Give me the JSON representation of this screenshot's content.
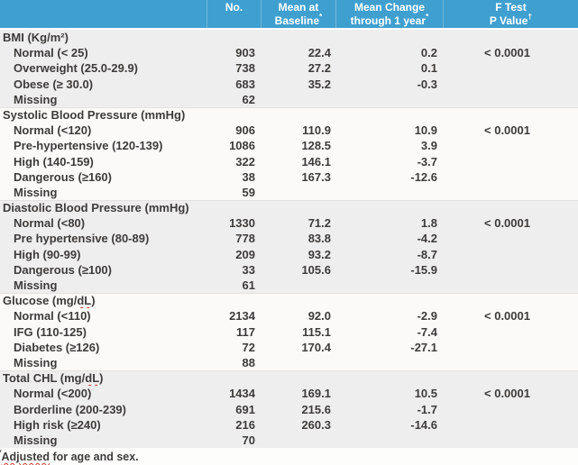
{
  "colors": {
    "header_bg": "#3FA0D0",
    "header_divider": "#72B9DB",
    "header_text": "#FFFFFF",
    "band_dark": "#EFEEEE",
    "band_light": "#FBFAF9",
    "body_text": "#3D3C3B",
    "squiggle": "#C43B2E",
    "footnote_bg": "#FDFDFC"
  },
  "table": {
    "columns": [
      {
        "line1": ""
      },
      {
        "line1": "No."
      },
      {
        "line1": "Mean at",
        "line2": "Baseline",
        "sup": "*"
      },
      {
        "line1": "Mean Change",
        "line2": "through 1 year",
        "sup": "*"
      },
      {
        "line1": "F Test",
        "line2": "P Value",
        "sup": "†"
      }
    ],
    "sections": [
      {
        "title": "BMI (Kg/m²)",
        "rows": [
          {
            "label": "Normal (< 25)",
            "n": "903",
            "baseline": "22.4",
            "change": "0.2",
            "p": "< 0.0001"
          },
          {
            "label": "Overweight (25.0-29.9)",
            "n": "738",
            "baseline": "27.2",
            "change": "0.1"
          },
          {
            "label": "Obese (≥ 30.0)",
            "n": "683",
            "baseline": "35.2",
            "change": "-0.3"
          },
          {
            "label": "Missing",
            "n": "62"
          }
        ]
      },
      {
        "title": "Systolic Blood Pressure (mmHg)",
        "rows": [
          {
            "label": "Normal (<120)",
            "n": "906",
            "baseline": "110.9",
            "change": "10.9",
            "p": "< 0.0001"
          },
          {
            "label": "Pre-hypertensive (120-139)",
            "n": "1086",
            "baseline": "128.5",
            "change": "3.9"
          },
          {
            "label": "High (140-159)",
            "n": "322",
            "baseline": "146.1",
            "change": "-3.7"
          },
          {
            "label": "Dangerous (≥160)",
            "n": "38",
            "baseline": "167.3",
            "change": "-12.6"
          },
          {
            "label": "Missing",
            "n": "59"
          }
        ]
      },
      {
        "title": "Diastolic Blood Pressure (mmHg)",
        "rows": [
          {
            "label": "Normal (<80)",
            "n": "1330",
            "baseline": "71.2",
            "change": "1.8",
            "p": "< 0.0001"
          },
          {
            "label": "Pre hypertensive (80-89)",
            "n": "778",
            "baseline": "83.8",
            "change": "-4.2"
          },
          {
            "label": "High (90-99)",
            "n": "209",
            "baseline": "93.2",
            "change": "-8.7"
          },
          {
            "label": "Dangerous (≥100)",
            "n": "33",
            "baseline": "105.6",
            "change": "-15.9"
          },
          {
            "label": "Missing",
            "n": "61"
          }
        ]
      },
      {
        "title": "Glucose (mg/dL)",
        "squiggle": "dL",
        "rows": [
          {
            "label": "Normal (<110)",
            "n": "2134",
            "baseline": "92.0",
            "change": "-2.9",
            "p": "< 0.0001"
          },
          {
            "label": "IFG (110-125)",
            "n": "117",
            "baseline": "115.1",
            "change": "-7.4"
          },
          {
            "label": "Diabetes (≥126)",
            "n": "72",
            "baseline": "170.4",
            "change": "-27.1"
          },
          {
            "label": "Missing",
            "n": "88"
          }
        ]
      },
      {
        "title": "Total CHL (mg/dL)",
        "squiggle": "dL",
        "rows": [
          {
            "label": "Normal (<200)",
            "n": "1434",
            "baseline": "169.1",
            "change": "10.5",
            "p": "< 0.0001"
          },
          {
            "label": "Borderline (200-239)",
            "n": "691",
            "baseline": "215.6",
            "change": "-1.7"
          },
          {
            "label": "High risk (≥240)",
            "n": "216",
            "baseline": "260.3",
            "change": "-14.6"
          },
          {
            "label": "Missing",
            "n": "70"
          }
        ]
      }
    ]
  },
  "footnote": {
    "sup": "*",
    "text": "Adjusted for age and sex.",
    "squiggle": "Adjusted"
  }
}
